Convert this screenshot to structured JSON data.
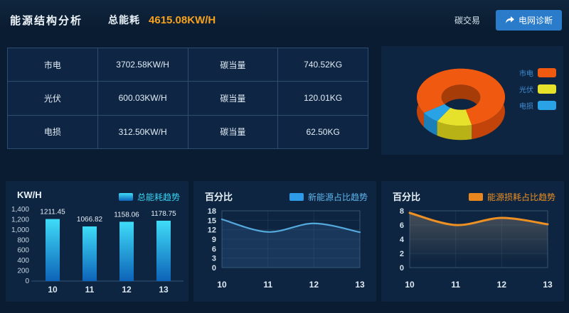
{
  "header": {
    "title": "能源结构分析",
    "total_label": "总能耗",
    "total_value": "4615.08KW/H",
    "carbon_trade_label": "碳交易",
    "diagnosis_button_label": "电网诊断"
  },
  "colors": {
    "accent_orange": "#f7a21f",
    "button_blue": "#2a7ccb",
    "page_bg": "#0a1c31",
    "panel_bg": "#0d2540"
  },
  "table": {
    "rows": [
      {
        "source": "市电",
        "power": "3702.58KW/H",
        "carbon_label": "碳当量",
        "carbon": "740.52KG"
      },
      {
        "source": "光伏",
        "power": "600.03KW/H",
        "carbon_label": "碳当量",
        "carbon": "120.01KG"
      },
      {
        "source": "电损",
        "power": "312.50KW/H",
        "carbon_label": "碳当量",
        "carbon": "62.50KG"
      }
    ]
  },
  "chart_data": [
    {
      "type": "pie",
      "style": "3d-donut",
      "legend": [
        "市电",
        "光伏",
        "电损"
      ],
      "values": [
        3702.58,
        600.03,
        312.5
      ],
      "colors": [
        "#f05a10",
        "#e6e12a",
        "#29a3e6"
      ],
      "side_colors": [
        "#c2440a",
        "#b9b216",
        "#1b7fba"
      ],
      "inner_colors": [
        "#a63c08",
        "#a8a114",
        "#176e9e"
      ],
      "start_angle": 237,
      "legend_position": "right"
    },
    {
      "type": "bar",
      "legend": "总能耗趋势",
      "ylabel": "KW/H",
      "categories": [
        "10",
        "11",
        "12",
        "13"
      ],
      "values": [
        1211.45,
        1066.82,
        1158.06,
        1178.75
      ],
      "value_labels": [
        "1211.45",
        "1066.82",
        "1158.06",
        "1178.75"
      ],
      "ylim": [
        0,
        1400
      ],
      "ytick_labels": [
        "0",
        "200",
        "400",
        "600",
        "800",
        "1,000",
        "1,200",
        "1,400"
      ],
      "bar_color_top": "#3fdcf8",
      "bar_color_bottom": "#0d63b8",
      "legend_color": "#38d5f6",
      "grid": false,
      "legend_position": "top-right"
    },
    {
      "type": "line",
      "legend": "新能源占比趋势",
      "ylabel": "百分比",
      "categories": [
        "10",
        "11",
        "12",
        "13"
      ],
      "values": [
        15.3,
        11.3,
        14.0,
        11.2
      ],
      "ylim": [
        0,
        18
      ],
      "yticks": [
        0,
        3,
        6,
        9,
        12,
        15,
        18
      ],
      "line_color": "#54aadd",
      "area_color": "rgba(70,125,185,0.22)",
      "swatch_color": "#2d9be8",
      "legend_color": "#5fb6ee",
      "grid": true,
      "smooth": true,
      "legend_position": "top-right"
    },
    {
      "type": "line",
      "legend": "能源损耗占比趋势",
      "ylabel": "百分比",
      "categories": [
        "10",
        "11",
        "12",
        "13"
      ],
      "values": [
        7.7,
        6.0,
        7.0,
        6.1
      ],
      "ylim": [
        0,
        8
      ],
      "yticks": [
        0,
        2,
        4,
        6,
        8
      ],
      "line_color": "#ef9022",
      "area_gradient": [
        "rgba(165,148,128,0.38)",
        "rgba(165,148,128,0)"
      ],
      "swatch_color": "#e8871e",
      "legend_color": "#ef9022",
      "grid": true,
      "smooth": true,
      "legend_position": "top-right"
    }
  ]
}
